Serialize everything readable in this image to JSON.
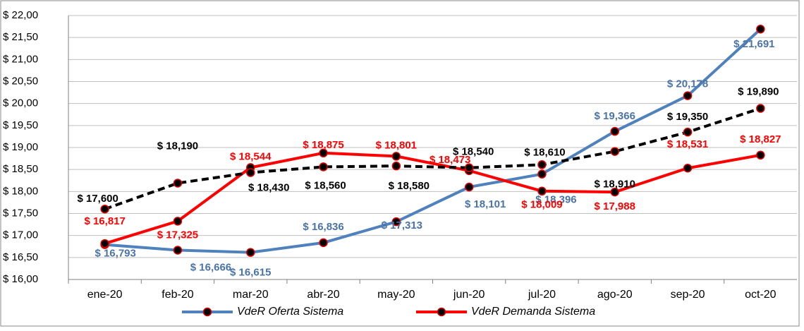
{
  "chart_data": {
    "type": "line",
    "categories": [
      "ene-20",
      "feb-20",
      "mar-20",
      "abr-20",
      "may-20",
      "jun-20",
      "jul-20",
      "ago-20",
      "sep-20",
      "oct-20"
    ],
    "series": [
      {
        "name": "VdeR Oferta Sistema",
        "color": "#4f81bd",
        "label_color": "#4a73a8",
        "values": [
          16.793,
          16.666,
          16.615,
          16.836,
          17.313,
          18.101,
          18.396,
          19.366,
          20.178,
          21.691
        ],
        "value_labels": [
          "$ 16,793",
          "$ 16,666",
          "$ 16,615",
          "$ 16,836",
          "$ 17,313",
          "$ 18,101",
          "$ 18,396",
          "$ 19,366",
          "$ 20,178",
          "$ 21,691"
        ]
      },
      {
        "name": "VdeR Demanda Sistema",
        "color": "#ff0000",
        "label_color": "#ff0000",
        "values": [
          16.817,
          17.325,
          18.544,
          18.875,
          18.801,
          18.473,
          18.009,
          17.988,
          18.531,
          18.827
        ],
        "value_labels": [
          "$ 16,817",
          "$ 17,325",
          "$ 18,544",
          "$ 18,875",
          "$ 18,801",
          "$ 18,473",
          "$ 18,009",
          "$ 17,988",
          "$ 18,531",
          "$ 18,827"
        ]
      },
      {
        "color": "#000000",
        "label_color": "#000000",
        "dashed": true,
        "values": [
          17.6,
          18.19,
          18.43,
          18.56,
          18.58,
          18.54,
          18.61,
          18.91,
          19.35,
          19.89
        ],
        "value_labels": [
          "$ 17,600",
          "$ 18,190",
          "$ 18,430",
          "$ 18,560",
          "$ 18,580",
          "$ 18,540",
          "$ 18,610",
          "$ 18,910",
          "$ 19,350",
          "$ 19,890"
        ]
      }
    ],
    "marker_color": "#e00000",
    "ylim": [
      16,
      22
    ],
    "yticks": [
      {
        "value": 16,
        "label": "$ 16,00"
      },
      {
        "value": 16.5,
        "label": "$ 16,50"
      },
      {
        "value": 17,
        "label": "$ 17,00"
      },
      {
        "value": 17.5,
        "label": "$ 17,50"
      },
      {
        "value": 18,
        "label": "$ 18,00"
      },
      {
        "value": 18.5,
        "label": "$ 18,50"
      },
      {
        "value": 19,
        "label": "$ 19,00"
      },
      {
        "value": 19.5,
        "label": "$ 19,50"
      },
      {
        "value": 20,
        "label": "$ 20,00"
      },
      {
        "value": 20.5,
        "label": "$ 20,50"
      },
      {
        "value": 21,
        "label": "$ 21,00"
      },
      {
        "value": 21.5,
        "label": "$ 21,50"
      },
      {
        "value": 22,
        "label": "$ 22,00"
      }
    ],
    "grid": true,
    "legend": "bottom"
  }
}
